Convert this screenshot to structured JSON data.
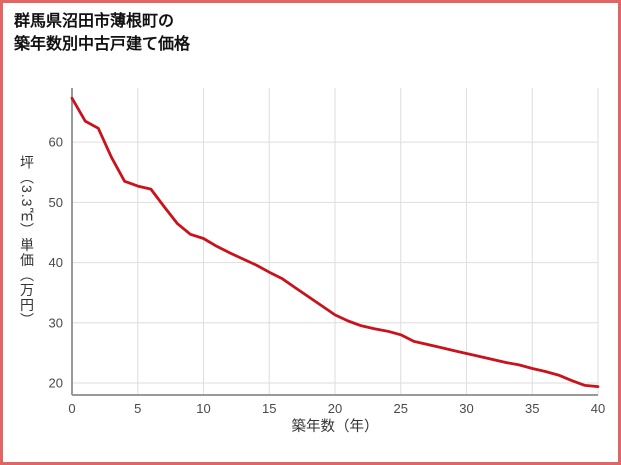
{
  "title": {
    "line1": "群馬県沼田市薄根町の",
    "line2": "築年数別中古戸建て価格"
  },
  "colors": {
    "border": "#e06666",
    "grid": "#dedede",
    "axis": "#999999",
    "tick_text": "#4a4a4a",
    "title_text": "#111111",
    "line": "#c9121c"
  },
  "chart_data": {
    "type": "line",
    "title": "群馬県沼田市薄根町の築年数別中古戸建て価格",
    "xlabel": "築年数（年）",
    "ylabel": "坪（3.3㎡）単価（万円）",
    "xlim": [
      0,
      40
    ],
    "ylim": [
      18,
      69
    ],
    "xticks": [
      0,
      5,
      10,
      15,
      20,
      25,
      30,
      35,
      40
    ],
    "yticks": [
      20,
      30,
      40,
      50,
      60
    ],
    "grid": true,
    "legend": false,
    "line_color": "#c9121c",
    "x": [
      0,
      1,
      2,
      3,
      4,
      5,
      6,
      7,
      8,
      9,
      10,
      11,
      12,
      13,
      14,
      15,
      16,
      17,
      18,
      19,
      20,
      21,
      22,
      23,
      24,
      25,
      26,
      27,
      28,
      29,
      30,
      31,
      32,
      33,
      34,
      35,
      36,
      37,
      38,
      39,
      40
    ],
    "values": [
      67.3,
      63.5,
      62.3,
      57.5,
      53.5,
      52.7,
      52.2,
      49.3,
      46.5,
      44.7,
      44.0,
      42.7,
      41.6,
      40.6,
      39.6,
      38.4,
      37.3,
      35.8,
      34.3,
      32.8,
      31.3,
      30.3,
      29.5,
      29.0,
      28.6,
      28.0,
      26.9,
      26.4,
      25.9,
      25.4,
      24.9,
      24.4,
      23.9,
      23.4,
      23.0,
      22.4,
      21.9,
      21.3,
      20.4,
      19.6,
      19.4
    ]
  }
}
